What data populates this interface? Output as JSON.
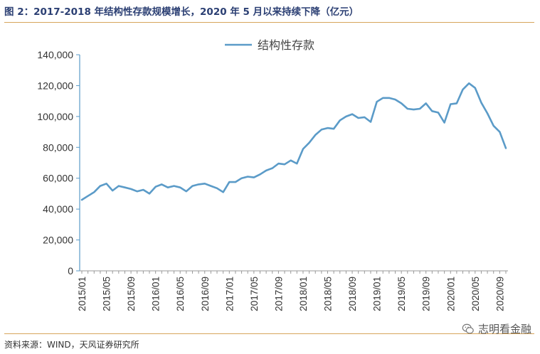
{
  "header": {
    "title": "图 2：2017-2018 年结构性存款规模增长，2020 年 5 月以来持续下降（亿元）"
  },
  "footer": {
    "source": "资料来源：WIND，天风证券研究所",
    "watermark": "志明看金融",
    "watermark_icon": "wechat-icon"
  },
  "colors": {
    "line": "#5b9bc8",
    "axis": "#999999",
    "rule": "#d7a55b",
    "title": "#2b3f73"
  },
  "chart_data": {
    "type": "line",
    "title": "",
    "xlabel": "",
    "ylabel": "",
    "ylim": [
      0,
      140000
    ],
    "yticks": [
      "0",
      "20,000",
      "40,000",
      "60,000",
      "80,000",
      "100,000",
      "120,000",
      "140,000"
    ],
    "xtick_labels": [
      "2015/01",
      "2015/05",
      "2015/09",
      "2016/01",
      "2016/05",
      "2016/09",
      "2017/01",
      "2017/05",
      "2017/09",
      "2018/01",
      "2018/05",
      "2018/09",
      "2019/01",
      "2019/05",
      "2019/09",
      "2020/01",
      "2020/05",
      "2020/09"
    ],
    "grid": false,
    "legend": "top-center",
    "x": [
      "2015/01",
      "2015/02",
      "2015/03",
      "2015/04",
      "2015/05",
      "2015/06",
      "2015/07",
      "2015/08",
      "2015/09",
      "2015/10",
      "2015/11",
      "2015/12",
      "2016/01",
      "2016/02",
      "2016/03",
      "2016/04",
      "2016/05",
      "2016/06",
      "2016/07",
      "2016/08",
      "2016/09",
      "2016/10",
      "2016/11",
      "2016/12",
      "2017/01",
      "2017/02",
      "2017/03",
      "2017/04",
      "2017/05",
      "2017/06",
      "2017/07",
      "2017/08",
      "2017/09",
      "2017/10",
      "2017/11",
      "2017/12",
      "2018/01",
      "2018/02",
      "2018/03",
      "2018/04",
      "2018/05",
      "2018/06",
      "2018/07",
      "2018/08",
      "2018/09",
      "2018/10",
      "2018/11",
      "2018/12",
      "2019/01",
      "2019/02",
      "2019/03",
      "2019/04",
      "2019/05",
      "2019/06",
      "2019/07",
      "2019/08",
      "2019/09",
      "2019/10",
      "2019/11",
      "2019/12",
      "2020/01",
      "2020/02",
      "2020/03",
      "2020/04",
      "2020/05",
      "2020/06",
      "2020/07",
      "2020/08",
      "2020/09",
      "2020/10"
    ],
    "series": [
      {
        "name": "结构性存款",
        "values": [
          46000,
          48500,
          51000,
          55000,
          56500,
          52000,
          55000,
          54000,
          53000,
          51500,
          52500,
          50000,
          54500,
          56000,
          54000,
          55000,
          54000,
          51500,
          55000,
          56000,
          56500,
          55000,
          53500,
          51000,
          57500,
          57500,
          60000,
          61000,
          60500,
          62500,
          65000,
          66500,
          69500,
          69000,
          71500,
          69500,
          79000,
          83000,
          88000,
          91500,
          92500,
          92000,
          97500,
          100000,
          101500,
          99000,
          99500,
          96500,
          109500,
          112000,
          112000,
          111000,
          108500,
          105000,
          104500,
          105000,
          108500,
          103500,
          102500,
          96000,
          108000,
          108500,
          117500,
          121500,
          118500,
          109000,
          102000,
          94000,
          90000,
          79500
        ]
      }
    ]
  }
}
